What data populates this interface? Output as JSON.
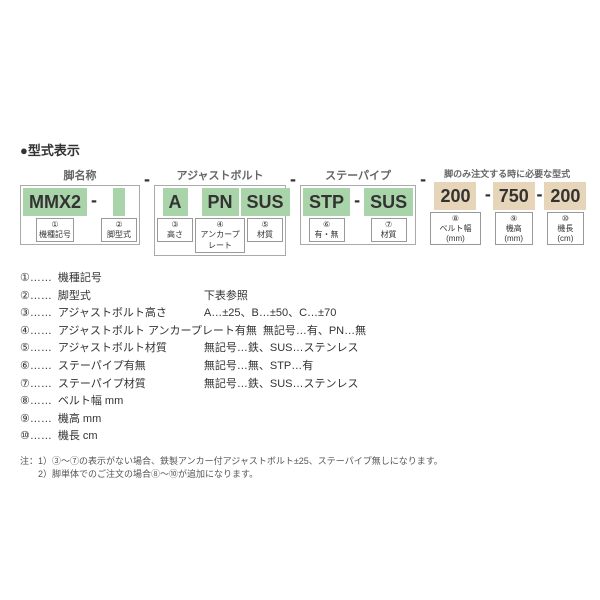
{
  "section_title": "●型式表示",
  "groups": [
    {
      "label": "脚名称",
      "bg": "green-bg",
      "cells": [
        {
          "val": "MMX2",
          "sub": "機種記号",
          "num": "①",
          "sep_after": "-"
        },
        {
          "val": "",
          "sub": "脚型式",
          "num": "②"
        }
      ]
    },
    {
      "label": "アジャストボルト",
      "bg": "green-bg",
      "sep_before": "-",
      "cells": [
        {
          "val": "A",
          "sub": "高さ",
          "num": "③"
        },
        {
          "val": "PN",
          "sub": "アンカープレート",
          "num": "④"
        },
        {
          "val": "SUS",
          "sub": "材質",
          "num": "⑤"
        }
      ]
    },
    {
      "label": "ステーパイプ",
      "bg": "green-bg",
      "sep_before": "-",
      "cells": [
        {
          "val": "STP",
          "sub": "有・無",
          "num": "⑥",
          "sep_after": "-"
        },
        {
          "val": "SUS",
          "sub": "材質",
          "num": "⑦"
        }
      ]
    },
    {
      "label": "",
      "bg": "tan-bg",
      "sep_before": "-",
      "note_right": "脚のみ注文する時に必要な型式",
      "cells": [
        {
          "val": "200",
          "sub": "ベルト幅(mm)",
          "num": "⑧",
          "sep_after": "-"
        },
        {
          "val": "750",
          "sub": "機高(mm)",
          "num": "⑨",
          "sep_after": "-"
        },
        {
          "val": "200",
          "sub": "機長(cm)",
          "num": "⑩"
        }
      ]
    }
  ],
  "desc": [
    {
      "num": "①",
      "key": "機種記号",
      "val": ""
    },
    {
      "num": "②",
      "key": "脚型式",
      "val": "下表参照"
    },
    {
      "num": "③",
      "key": "アジャストボルト高さ",
      "val": "A…±25、B…±50、C…±70"
    },
    {
      "num": "④",
      "key": "アジャストボルト\nアンカープレート有無",
      "val": "無記号…有、PN…無"
    },
    {
      "num": "⑤",
      "key": "アジャストボルト材質",
      "val": "無記号…鉄、SUS…ステンレス"
    },
    {
      "num": "⑥",
      "key": "ステーパイプ有無",
      "val": "無記号…無、STP…有"
    },
    {
      "num": "⑦",
      "key": "ステーパイプ材質",
      "val": "無記号…鉄、SUS…ステンレス"
    },
    {
      "num": "⑧",
      "key": "ベルト幅 mm",
      "val": ""
    },
    {
      "num": "⑨",
      "key": "機高 mm",
      "val": ""
    },
    {
      "num": "⑩",
      "key": "機長 cm",
      "val": ""
    }
  ],
  "notes": [
    "注：1）③～⑦の表示がない場合、鉄製アンカー付アジャストボルト±25、ステーパイプ無しになります。",
    "　　2）脚単体でのご注文の場合⑧～⑩が追加になります。"
  ]
}
